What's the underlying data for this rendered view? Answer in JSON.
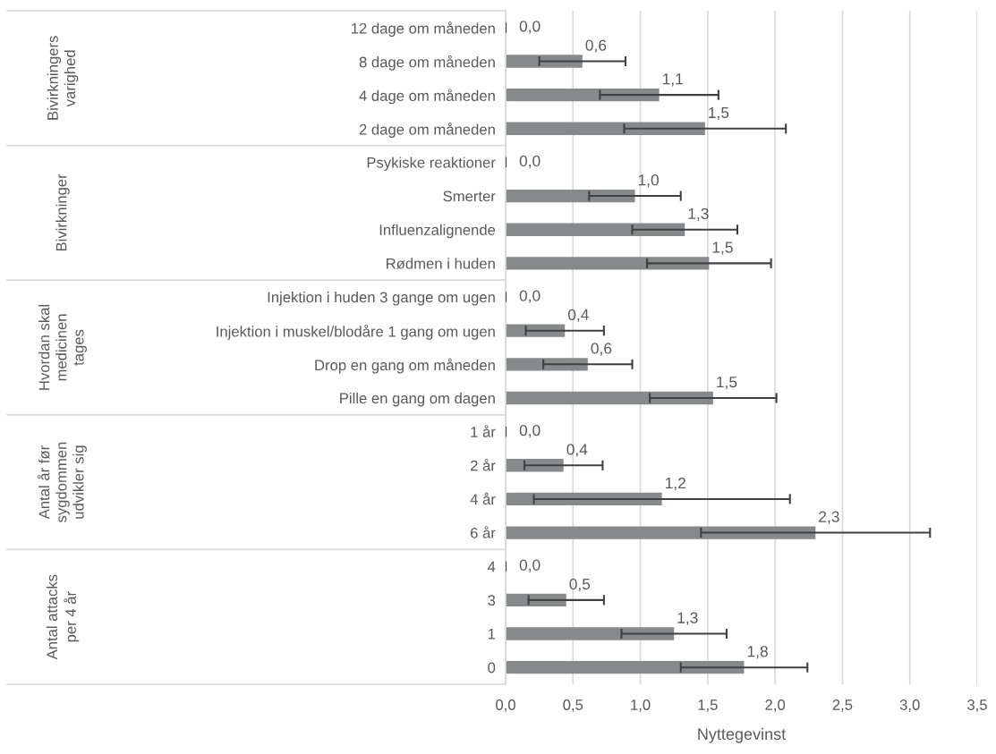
{
  "chart_data": {
    "type": "bar",
    "orientation": "horizontal",
    "xlabel": "Nyttegevinst",
    "categories": [
      "12 dage om måneden",
      "8 dage om måneden",
      "4 dage om måneden",
      "2 dage om måneden",
      "Psykiske reaktioner",
      "Smerter",
      "Influenzalignende",
      "Rødmen i huden",
      "Injektion i huden 3 gange om ugen",
      "Injektion i muskel/blodåre 1 gang om ugen",
      "Drop en gang om måneden",
      "Pille en gang om dagen",
      "1 år",
      "2 år",
      "4 år",
      "6 år",
      "4",
      "3",
      "1",
      "0"
    ],
    "values": [
      0,
      0.57,
      1.14,
      1.48,
      0,
      0.96,
      1.33,
      1.51,
      0,
      0.44,
      0.61,
      1.54,
      0,
      0.43,
      1.16,
      2.3,
      0,
      0.45,
      1.25,
      1.77
    ],
    "errors": [
      0,
      0.32,
      0.44,
      0.6,
      0,
      0.34,
      0.39,
      0.46,
      0,
      0.29,
      0.33,
      0.47,
      0,
      0.29,
      0.95,
      0.85,
      0,
      0.28,
      0.39,
      0.47
    ],
    "value_labels": [
      "0,0",
      "0,6",
      "1,1",
      "1,5",
      "0,0",
      "1,0",
      "1,3",
      "1,5",
      "0,0",
      "0,4",
      "0,6",
      "1,5",
      "0,0",
      "0,4",
      "1,2",
      "2,3",
      "0,0",
      "0,5",
      "1,3",
      "1,8"
    ],
    "color": "#878a8b",
    "annotations": [
      "Bivirkningers\nvarighed",
      "Bivirkninger",
      "Hvordan skal\nmedicinen\ntages",
      "Antal år før\nsygdommen\nudvikler sig",
      "Antal attacks\nper 4 år"
    ],
    "xlim": [
      0,
      3.5
    ],
    "xticks": [
      {
        "value": 0,
        "label": "0,0"
      },
      {
        "value": 0.5,
        "label": "0,5"
      },
      {
        "value": 1.0,
        "label": "1,0"
      },
      {
        "value": 1.5,
        "label": "1,5"
      },
      {
        "value": 2.0,
        "label": "2,0"
      },
      {
        "value": 2.5,
        "label": "2,5"
      },
      {
        "value": 3.0,
        "label": "3,0"
      },
      {
        "value": 3.5,
        "label": "3,5"
      }
    ],
    "grid": "x",
    "legend": false
  }
}
